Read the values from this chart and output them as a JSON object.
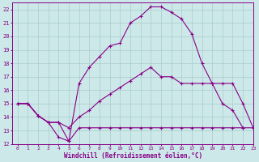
{
  "xlabel": "Windchill (Refroidissement éolien,°C)",
  "bg_color": "#cce8e8",
  "grid_color": "#aacccc",
  "line_color": "#880088",
  "xlim": [
    -0.5,
    23
  ],
  "ylim": [
    12,
    22.5
  ],
  "xticks": [
    0,
    1,
    2,
    3,
    4,
    5,
    6,
    7,
    8,
    9,
    10,
    11,
    12,
    13,
    14,
    15,
    16,
    17,
    18,
    19,
    20,
    21,
    22,
    23
  ],
  "yticks": [
    12,
    13,
    14,
    15,
    16,
    17,
    18,
    19,
    20,
    21,
    22
  ],
  "line1_x": [
    0,
    1,
    2,
    3,
    4,
    5,
    6,
    7,
    8,
    9,
    10,
    11,
    12,
    13,
    14,
    15,
    16,
    17,
    18,
    19,
    20,
    21,
    22
  ],
  "line1_y": [
    15.0,
    15.0,
    14.1,
    13.6,
    13.6,
    12.2,
    16.5,
    17.7,
    18.5,
    19.3,
    19.5,
    21.0,
    21.5,
    22.2,
    22.2,
    21.8,
    21.3,
    20.2,
    18.0,
    16.5,
    15.0,
    14.5,
    13.2
  ],
  "line2_x": [
    0,
    1,
    2,
    3,
    4,
    5,
    6,
    7,
    8,
    9,
    10,
    11,
    12,
    13,
    14,
    15,
    16,
    17,
    18,
    19,
    20,
    21,
    22,
    23
  ],
  "line2_y": [
    15.0,
    15.0,
    14.1,
    13.6,
    13.6,
    13.2,
    14.0,
    14.5,
    15.2,
    15.7,
    16.2,
    16.7,
    17.2,
    17.7,
    17.0,
    17.0,
    16.5,
    16.5,
    16.5,
    16.5,
    16.5,
    16.5,
    15.0,
    13.2
  ],
  "line3_x": [
    0,
    1,
    2,
    3,
    4,
    5,
    6,
    7,
    8,
    9,
    10,
    11,
    12,
    13,
    14,
    15,
    16,
    17,
    18,
    19,
    20,
    21,
    22,
    23
  ],
  "line3_y": [
    15.0,
    15.0,
    14.1,
    13.6,
    12.5,
    12.2,
    13.2,
    13.2,
    13.2,
    13.2,
    13.2,
    13.2,
    13.2,
    13.2,
    13.2,
    13.2,
    13.2,
    13.2,
    13.2,
    13.2,
    13.2,
    13.2,
    13.2,
    13.2
  ]
}
